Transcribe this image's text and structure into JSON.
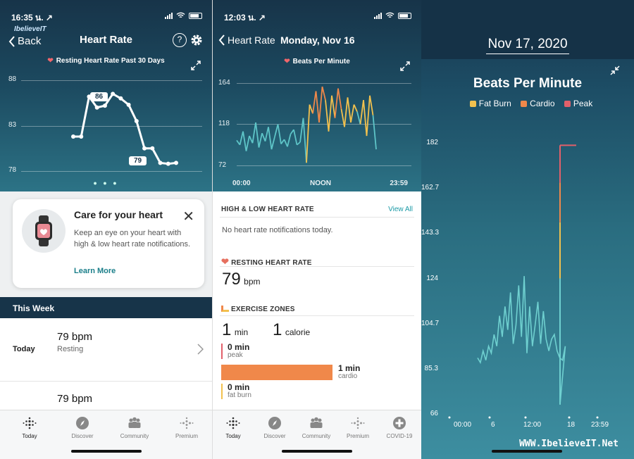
{
  "p1": {
    "status_time": "16:35 น. ↗",
    "logo": "IbelieveIT",
    "back_label": "Back",
    "title": "Heart Rate",
    "help_label": "?",
    "chart_label": "Resting Heart Rate Past 30 Days",
    "y_ticks": [
      "88",
      "83",
      "78"
    ],
    "callout_high": "86",
    "callout_low": "79",
    "card": {
      "title": "Care for your heart",
      "body": "Keep an eye on your heart with high & low heart rate notifications.",
      "link": "Learn More"
    },
    "this_week": "This Week",
    "rows": [
      {
        "day": "Today",
        "value": "79 bpm",
        "label": "Resting"
      },
      {
        "day": "",
        "value": "79 bpm",
        "label": ""
      }
    ]
  },
  "p2": {
    "status_time": "12:03 น. ↗",
    "back_label": "Heart Rate",
    "title": "Monday, Nov 16",
    "chart_label": "Beats Per Minute",
    "y_ticks": [
      "164",
      "118",
      "72"
    ],
    "x_ticks": [
      "00:00",
      "NOON",
      "23:59"
    ],
    "hl_title": "HIGH & LOW HEART RATE",
    "view_all": "View All",
    "hl_text": "No heart rate notifications today.",
    "rhr_title": "RESTING HEART RATE",
    "rhr_value": "79",
    "rhr_unit": "bpm",
    "ez_title": "EXERCISE ZONES",
    "ez_min_value": "1",
    "ez_min_unit": "min",
    "ez_cal_value": "1",
    "ez_cal_unit": "calorie",
    "zones": [
      {
        "value": "0 min",
        "name": "peak",
        "color": "#e2606a",
        "fill": 0
      },
      {
        "value": "1 min",
        "name": "cardio",
        "color": "#f0884a",
        "fill": 1
      },
      {
        "value": "0 min",
        "name": "fat burn",
        "color": "#f2c14e",
        "fill": 0
      }
    ]
  },
  "p3": {
    "date": "Nov 17, 2020",
    "title": "Beats Per Minute",
    "legend": [
      {
        "name": "Fat Burn",
        "color": "#f2c14e"
      },
      {
        "name": "Cardio",
        "color": "#f0884a"
      },
      {
        "name": "Peak",
        "color": "#e2606a"
      }
    ],
    "y_ticks": [
      "182",
      "162.7",
      "143.3",
      "124",
      "104.7",
      "85.3",
      "66"
    ],
    "x_ticks": [
      "00:00",
      "6",
      "12:00",
      "18",
      "23:59"
    ],
    "watermark": "WWW.IbelieveIT.Net"
  },
  "tabs": {
    "p1": [
      {
        "label": "Today",
        "icon": "today-icon"
      },
      {
        "label": "Discover",
        "icon": "compass-icon"
      },
      {
        "label": "Community",
        "icon": "community-icon"
      },
      {
        "label": "Premium",
        "icon": "premium-icon"
      }
    ],
    "p2": [
      {
        "label": "Today",
        "icon": "today-icon"
      },
      {
        "label": "Discover",
        "icon": "compass-icon"
      },
      {
        "label": "Community",
        "icon": "community-icon"
      },
      {
        "label": "Premium",
        "icon": "premium-icon"
      },
      {
        "label": "COVID-19",
        "icon": "covid-icon"
      }
    ]
  },
  "chart_data": [
    {
      "type": "line",
      "title": "Resting Heart Rate Past 30 Days",
      "ylim": [
        78,
        88
      ],
      "y_ticks": [
        88,
        83,
        78
      ],
      "x": [
        1,
        2,
        3,
        4,
        5,
        6,
        7,
        8,
        9,
        10,
        11,
        12,
        13,
        14
      ],
      "values": [
        81.8,
        81.8,
        86.2,
        85.0,
        85.2,
        86.5,
        86.0,
        85.3,
        83.5,
        80.5,
        80.5,
        78.9,
        78.8,
        78.9
      ]
    },
    {
      "type": "line",
      "title": "Beats Per Minute",
      "x_ticks": [
        "00:00",
        "NOON",
        "23:59"
      ],
      "y_ticks": [
        164,
        118,
        72
      ],
      "ylim": [
        72,
        164
      ],
      "series": [
        {
          "name": "Beats Per Minute",
          "values": [
            100,
            95,
            110,
            88,
            105,
            97,
            120,
            92,
            108,
            99,
            115,
            90,
            104,
            118,
            96,
            101,
            93,
            107,
            112,
            95,
            98,
            125,
            75,
            140,
            130,
            155,
            120,
            160,
            145,
            110,
            150,
            125,
            158,
            135,
            115,
            148,
            120,
            140,
            132,
            118,
            145,
            105,
            150,
            128,
            90
          ]
        }
      ]
    },
    {
      "type": "line",
      "title": "Beats Per Minute",
      "x_ticks": [
        "00:00",
        "6",
        "12:00",
        "18",
        "23:59"
      ],
      "y_ticks": [
        182,
        162.7,
        143.3,
        124,
        104.7,
        85.3,
        66
      ],
      "ylim": [
        66,
        182
      ],
      "series": [
        {
          "name": "Beats Per Minute",
          "values": [
            90,
            88,
            93,
            89,
            95,
            92,
            100,
            95,
            108,
            99,
            112,
            102,
            118,
            96,
            104,
            121,
            99,
            125,
            92,
            112,
            95,
            104,
            114,
            96,
            110,
            98,
            93,
            98,
            100,
            93,
            90,
            89,
            95,
            70,
            181,
            181,
            181
          ]
        }
      ]
    }
  ]
}
